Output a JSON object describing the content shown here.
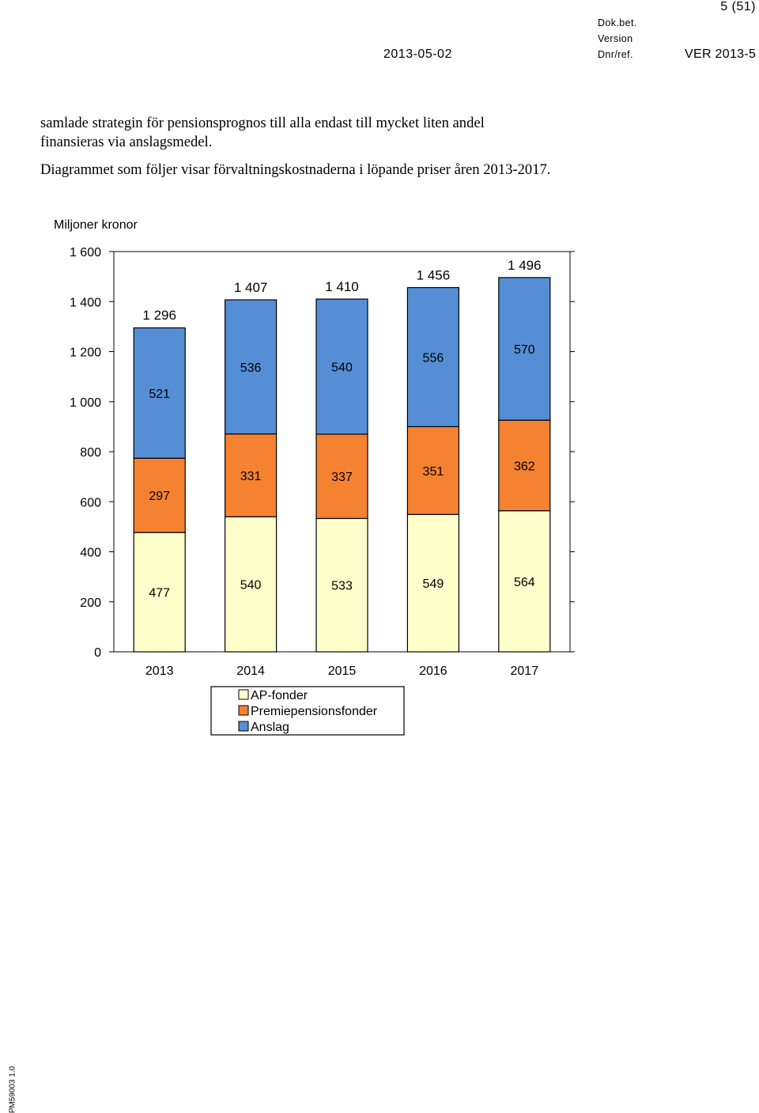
{
  "header": {
    "page_number": "5 (51)",
    "date": "2013-05-02",
    "dok_bet_label": "Dok.bet.",
    "version_label": "Version",
    "dnr_label": "Dnr/ref.",
    "version_value": "VER 2013-5"
  },
  "body": {
    "paragraph1_line1": "samlade strategin för pensionsprognos till alla endast till mycket liten andel",
    "paragraph1_line2": "finansieras via anslagsmedel.",
    "paragraph2": "Diagrammet som följer visar förvaltningskostnaderna i löpande priser åren 2013-2017."
  },
  "chart_data": {
    "type": "bar",
    "stacked": true,
    "ylabel": "Miljoner kronor",
    "ylim": [
      0,
      1600
    ],
    "yticks": [
      0,
      200,
      400,
      600,
      800,
      1000,
      1200,
      1400,
      1600
    ],
    "ytick_labels": [
      "0",
      "200",
      "400",
      "600",
      "800",
      "1 000",
      "1 200",
      "1 400",
      "1 600"
    ],
    "categories": [
      "2013",
      "2014",
      "2015",
      "2016",
      "2017"
    ],
    "series": [
      {
        "name": "AP-fonder",
        "values": [
          477,
          540,
          533,
          549,
          564
        ],
        "labels": [
          "477",
          "540",
          "533",
          "549",
          "564"
        ],
        "color": "#FFFFCC"
      },
      {
        "name": "Premiepensionsfonder",
        "values": [
          297,
          331,
          337,
          351,
          362
        ],
        "labels": [
          "297",
          "331",
          "337",
          "351",
          "362"
        ],
        "color": "#F58230"
      },
      {
        "name": "Anslag",
        "values": [
          521,
          536,
          540,
          556,
          570
        ],
        "labels": [
          "521",
          "536",
          "540",
          "556",
          "570"
        ],
        "color": "#558ED5"
      }
    ],
    "totals": [
      1296,
      1407,
      1410,
      1456,
      1496
    ],
    "total_labels": [
      "1 296",
      "1 407",
      "1 410",
      "1 456",
      "1 496"
    ],
    "grid": false,
    "legend_position": "bottom"
  },
  "footer": {
    "side_label": "PM59003 1.0"
  }
}
